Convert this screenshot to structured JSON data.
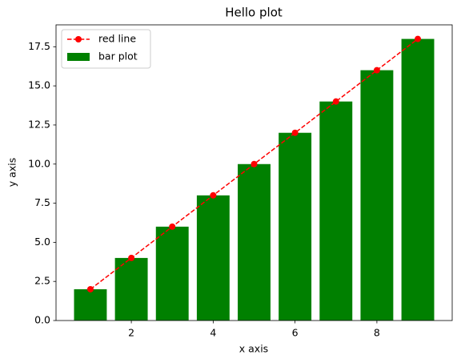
{
  "chart_data": {
    "type": "bar",
    "title": "Hello plot",
    "xlabel": "x axis",
    "ylabel": "y axis",
    "x": [
      1,
      2,
      3,
      4,
      5,
      6,
      7,
      8,
      9
    ],
    "series": [
      {
        "name": "red line",
        "color": "red",
        "type": "line",
        "linestyle": "dashed",
        "marker": "o",
        "values": [
          2,
          4,
          6,
          8,
          10,
          12,
          14,
          16,
          18
        ]
      },
      {
        "name": "bar plot",
        "color": "green",
        "type": "bar",
        "values": [
          2,
          4,
          6,
          8,
          10,
          12,
          14,
          16,
          18
        ]
      }
    ],
    "xlim": [
      0.16,
      9.84
    ],
    "xticks": [
      2,
      4,
      6,
      8
    ],
    "ylim": [
      0,
      18.9
    ],
    "yticks": [
      {
        "value": 0,
        "label": "0.0"
      },
      2.5,
      {
        "value": 5,
        "label": "5.0"
      },
      7.5,
      {
        "value": 10,
        "label": "10.0"
      },
      12.5,
      {
        "value": 15,
        "label": "15.0"
      },
      17.5
    ],
    "legend": "upper left"
  }
}
